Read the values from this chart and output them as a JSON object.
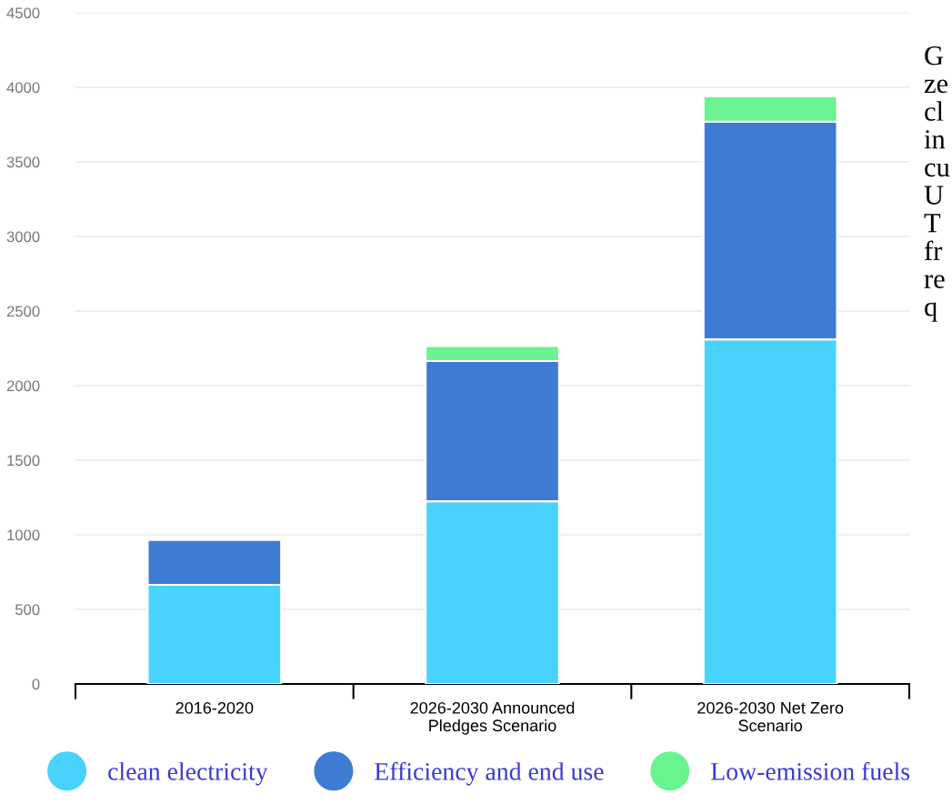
{
  "chart_data": {
    "type": "bar",
    "stacked": true,
    "categories": [
      "2016-2020",
      "2026-2030 Announced\nPledges Scenario",
      "2026-2030 Net Zero\nScenario"
    ],
    "series": [
      {
        "name": "clean electricity",
        "color": "#48d3fd",
        "values": [
          665,
          1225,
          2310
        ]
      },
      {
        "name": "Efficiency and end use",
        "color": "#3e7bd3",
        "values": [
          300,
          940,
          1460
        ]
      },
      {
        "name": "Low-emission fuels",
        "color": "#69f48f",
        "values": [
          null,
          100,
          170
        ]
      }
    ],
    "ylim": [
      0,
      4500
    ],
    "yticks": [
      0,
      500,
      1000,
      1500,
      2000,
      2500,
      3000,
      3500,
      4000,
      4500
    ],
    "grid": "y",
    "legend": "bottom",
    "annotations": [
      "G\nze\ncl\nin\ncu\nU\nT\nfr\nre\nq"
    ]
  }
}
